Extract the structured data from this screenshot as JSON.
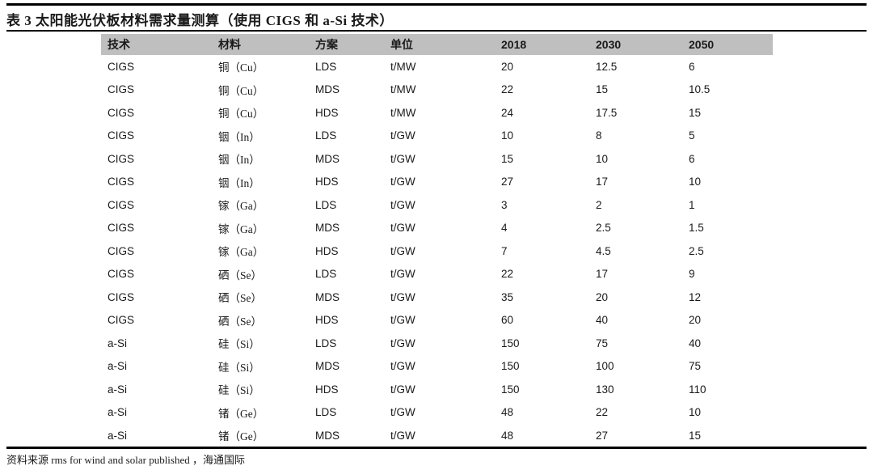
{
  "title": "表 3  太阳能光伏板材料需求量测算（使用 CIGS 和 a-Si 技术）",
  "colors": {
    "header_bg": "#bfbfbf",
    "rule": "#000000",
    "text": "#1a1a1a"
  },
  "table": {
    "columns": [
      "技术",
      "材料",
      "方案",
      "单位",
      "2018",
      "2030",
      "2050"
    ],
    "rows": [
      [
        "CIGS",
        "铜（Cu）",
        "LDS",
        "t/MW",
        "20",
        "12.5",
        "6"
      ],
      [
        "CIGS",
        "铜（Cu）",
        "MDS",
        "t/MW",
        "22",
        "15",
        "10.5"
      ],
      [
        "CIGS",
        "铜（Cu）",
        "HDS",
        "t/MW",
        "24",
        "17.5",
        "15"
      ],
      [
        "CIGS",
        "铟（In）",
        "LDS",
        "t/GW",
        "10",
        "8",
        "5"
      ],
      [
        "CIGS",
        "铟（In）",
        "MDS",
        "t/GW",
        "15",
        "10",
        "6"
      ],
      [
        "CIGS",
        "铟（In）",
        "HDS",
        "t/GW",
        "27",
        "17",
        "10"
      ],
      [
        "CIGS",
        "镓（Ga）",
        "LDS",
        "t/GW",
        "3",
        "2",
        "1"
      ],
      [
        "CIGS",
        "镓（Ga）",
        "MDS",
        "t/GW",
        "4",
        "2.5",
        "1.5"
      ],
      [
        "CIGS",
        "镓（Ga）",
        "HDS",
        "t/GW",
        "7",
        "4.5",
        "2.5"
      ],
      [
        "CIGS",
        "硒（Se）",
        "LDS",
        "t/GW",
        "22",
        "17",
        "9"
      ],
      [
        "CIGS",
        "硒（Se）",
        "MDS",
        "t/GW",
        "35",
        "20",
        "12"
      ],
      [
        "CIGS",
        "硒（Se）",
        "HDS",
        "t/GW",
        "60",
        "40",
        "20"
      ],
      [
        "a-Si",
        "硅（Si）",
        "LDS",
        "t/GW",
        "150",
        "75",
        "40"
      ],
      [
        "a-Si",
        "硅（Si）",
        "MDS",
        "t/GW",
        "150",
        "100",
        "75"
      ],
      [
        "a-Si",
        "硅（Si）",
        "HDS",
        "t/GW",
        "150",
        "130",
        "110"
      ],
      [
        "a-Si",
        "锗（Ge）",
        "LDS",
        "t/GW",
        "48",
        "22",
        "10"
      ],
      [
        "a-Si",
        "锗（Ge）",
        "MDS",
        "t/GW",
        "48",
        "27",
        "15"
      ]
    ]
  },
  "footer": {
    "source": "资料来源 rms for wind and solar published ，海通国际"
  }
}
